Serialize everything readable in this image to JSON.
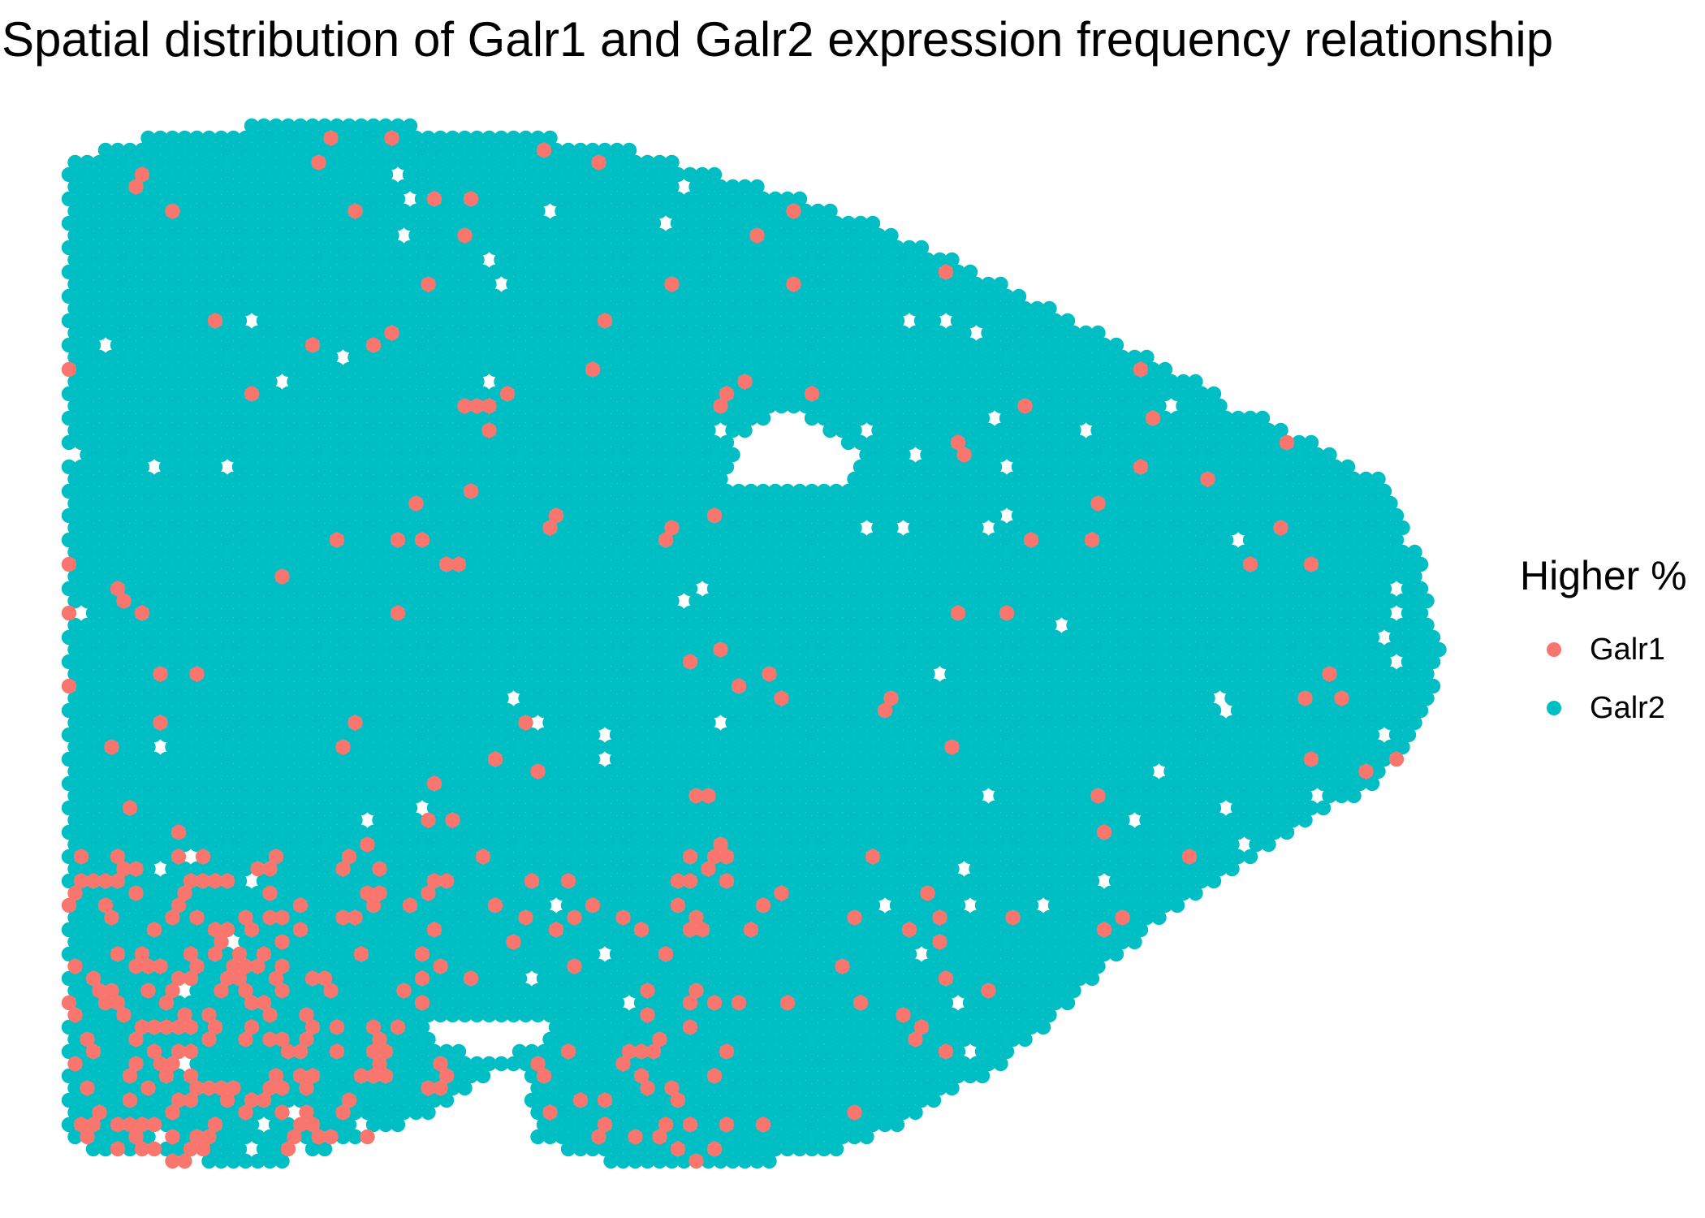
{
  "chart_data": {
    "type": "scatter",
    "title": "Spatial distribution of Galr1 and Galr2 expression frequency relationship",
    "xlabel": "",
    "ylabel": "",
    "axes_visible": false,
    "grid": false,
    "legend": {
      "title": "Higher %",
      "placement": "right",
      "entries": [
        {
          "label": "Galr1",
          "color": "#F8766D"
        },
        {
          "label": "Galr2",
          "color": "#00BFC4"
        }
      ]
    },
    "series": [
      {
        "name": "Galr2",
        "color": "#00BFC4",
        "role": "dominant category filling the tissue section",
        "approximate_share": 0.93
      },
      {
        "name": "Galr1",
        "color": "#F8766D",
        "role": "scattered spots, densest in lower-left region",
        "approximate_share": 0.07
      }
    ]
  }
}
